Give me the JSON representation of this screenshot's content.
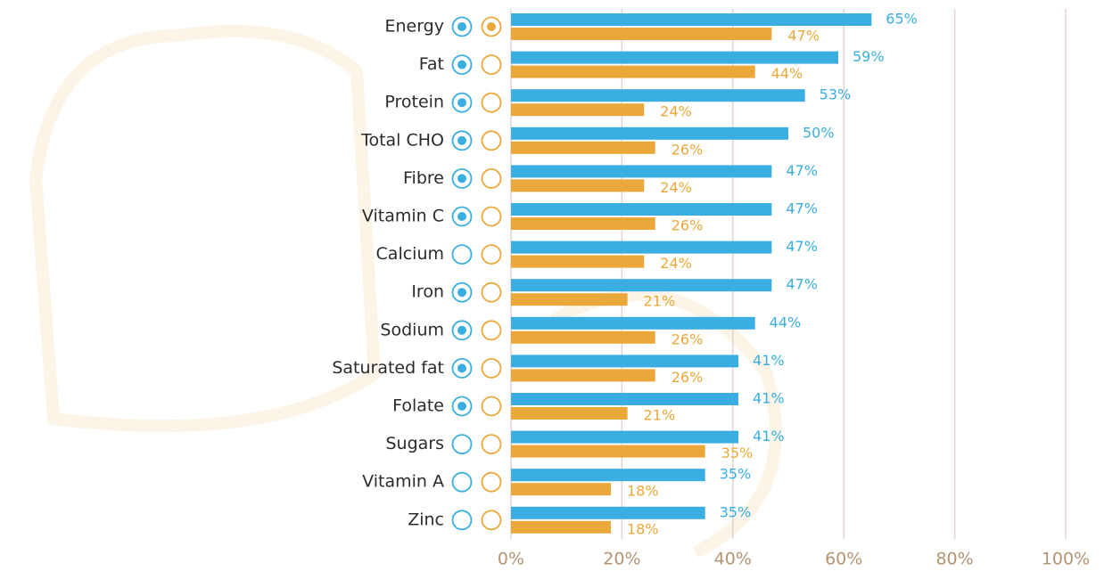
{
  "chart_data": {
    "type": "bar",
    "orientation": "horizontal",
    "categories": [
      "Energy",
      "Fat",
      "Protein",
      "Total CHO",
      "Fibre",
      "Vitamin C",
      "Calcium",
      "Iron",
      "Sodium",
      "Saturated fat",
      "Folate",
      "Sugars",
      "Vitamin A",
      "Zinc"
    ],
    "series": [
      {
        "color": "#3aaee0",
        "values": [
          65,
          59,
          53,
          50,
          47,
          47,
          47,
          47,
          44,
          41,
          41,
          41,
          35,
          35
        ],
        "value_labels": [
          "65%",
          "59%",
          "53%",
          "50%",
          "47%",
          "47%",
          "47%",
          "47%",
          "44%",
          "41%",
          "41%",
          "41%",
          "35%",
          "35%"
        ],
        "selected": [
          true,
          true,
          true,
          true,
          true,
          true,
          false,
          true,
          true,
          true,
          true,
          false,
          false,
          false
        ]
      },
      {
        "color": "#eba83a",
        "values": [
          47,
          44,
          24,
          26,
          24,
          26,
          24,
          21,
          26,
          26,
          21,
          35,
          18,
          18
        ],
        "value_labels": [
          "47%",
          "44%",
          "24%",
          "26%",
          "24%",
          "26%",
          "24%",
          "21%",
          "26%",
          "26%",
          "21%",
          "35%",
          "18%",
          "18%"
        ],
        "selected": [
          true,
          false,
          false,
          false,
          false,
          false,
          false,
          false,
          false,
          false,
          false,
          false,
          false,
          false
        ]
      }
    ],
    "xlim": [
      0,
      100
    ],
    "xticks": [
      {
        "value": 0,
        "label": "0%"
      },
      {
        "value": 20,
        "label": "20%"
      },
      {
        "value": 40,
        "label": "40%"
      },
      {
        "value": 60,
        "label": "60%"
      },
      {
        "value": 80,
        "label": "80%"
      },
      {
        "value": 100,
        "label": "100%"
      }
    ],
    "grid": true
  }
}
